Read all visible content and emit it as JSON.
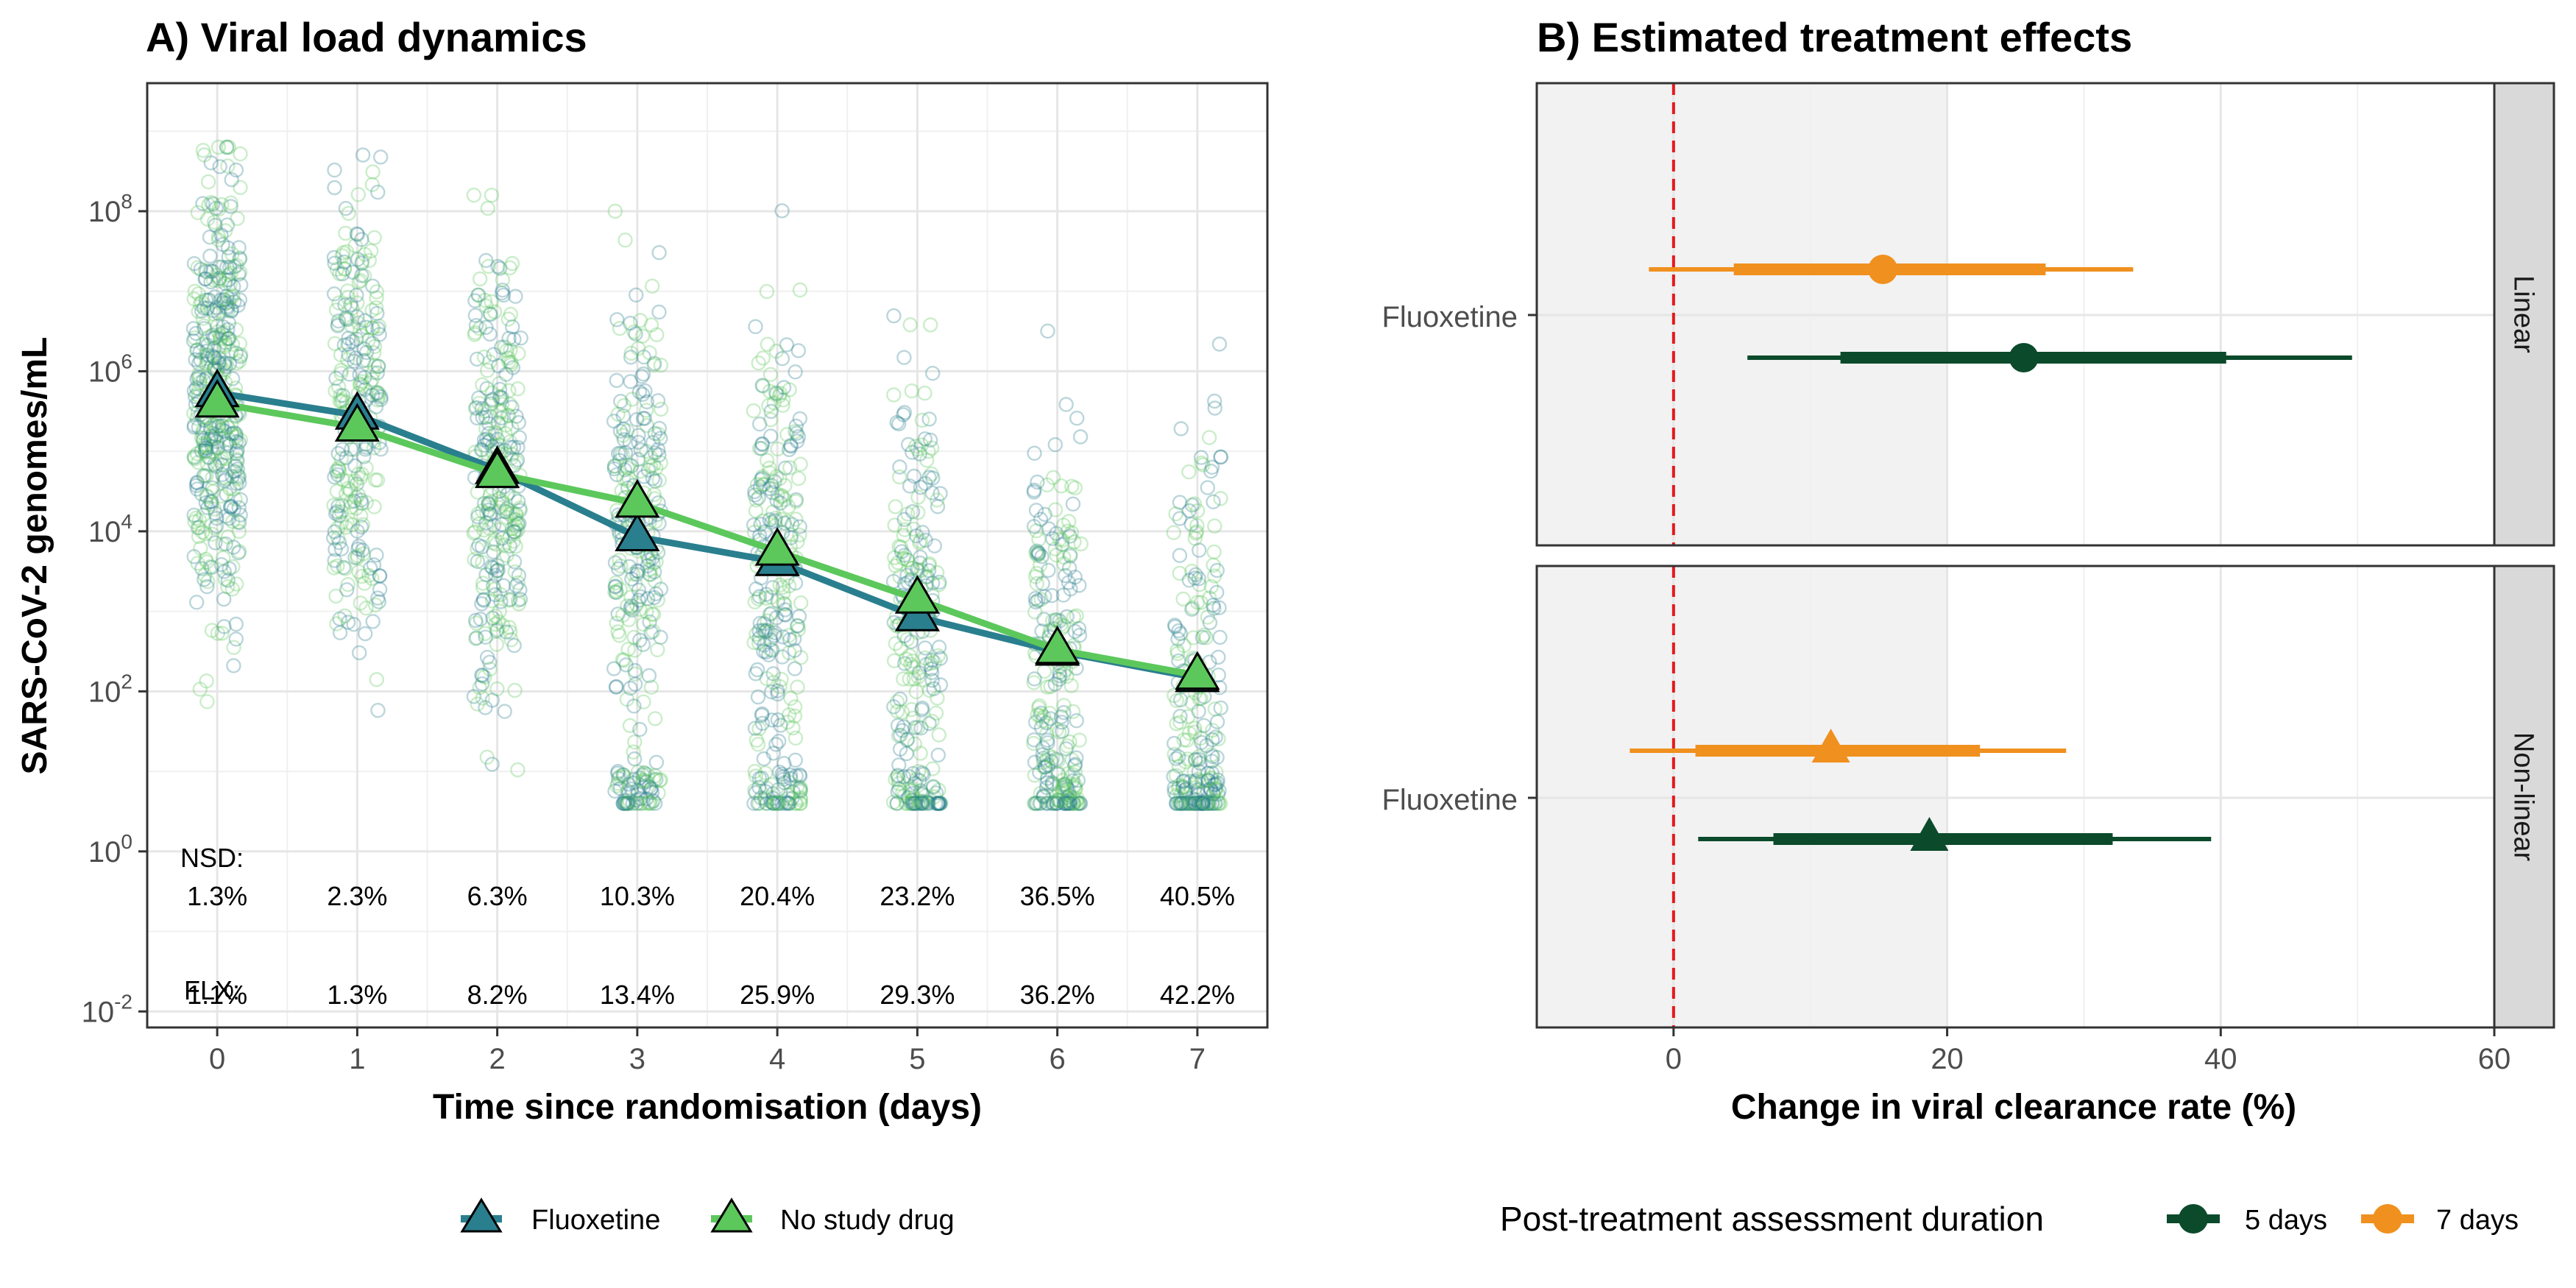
{
  "panelA": {
    "title": "A) Viral load dynamics",
    "xlabel": "Time since randomisation (days)",
    "ylabel": "SARS-CoV-2 genomes/mL",
    "nsd_label": "NSD:",
    "flx_label": "FLX:",
    "nsd_pct": [
      "1.3%",
      "2.3%",
      "6.3%",
      "10.3%",
      "20.4%",
      "23.2%",
      "36.5%",
      "40.5%"
    ],
    "flx_pct": [
      "1.1%",
      "1.3%",
      "8.2%",
      "13.4%",
      "25.9%",
      "29.3%",
      "36.2%",
      "42.2%"
    ],
    "legend": {
      "fluoxetine": "Fluoxetine",
      "nsd": "No study drug"
    },
    "colors": {
      "fluoxetine": "#2a7f8e",
      "nsd": "#5cc85c"
    }
  },
  "panelB": {
    "title": "B) Estimated treatment effects",
    "xlabel": "Change in viral clearance rate (%)",
    "row_label": "Fluoxetine",
    "strips": [
      "Linear",
      "Non-linear"
    ],
    "legend_title": "Post-treatment assessment duration",
    "legend": {
      "d5": "5 days",
      "d7": "7 days"
    },
    "colors": {
      "d5": "#0b4a2b",
      "d7": "#f0901e"
    }
  },
  "chart_data": [
    {
      "type": "line",
      "title": "A) Viral load dynamics",
      "xlabel": "Time since randomisation (days)",
      "ylabel": "SARS-CoV-2 genomes/mL",
      "x": [
        0,
        1,
        2,
        3,
        4,
        5,
        6,
        7
      ],
      "xlim": [
        -0.5,
        7.5
      ],
      "y_scale": "log10",
      "ylim_log10": [
        -2.2,
        9.6
      ],
      "y_ticks_log10": [
        -2,
        0,
        2,
        4,
        6,
        8
      ],
      "grid": true,
      "legend_position": "bottom",
      "series": [
        {
          "name": "Fluoxetine",
          "marker": "triangle",
          "log10_values": [
            5.73,
            5.45,
            4.77,
            3.93,
            3.62,
            2.93,
            2.5,
            2.17
          ]
        },
        {
          "name": "No study drug",
          "marker": "triangle",
          "log10_values": [
            5.6,
            5.3,
            4.72,
            4.35,
            3.75,
            3.15,
            2.52,
            2.2
          ]
        }
      ],
      "raw_points": "jittered individual log10 viral load measurements per day (not individually readable)",
      "annotations": {
        "NSD": [
          "1.3%",
          "2.3%",
          "6.3%",
          "10.3%",
          "20.4%",
          "23.2%",
          "36.5%",
          "40.5%"
        ],
        "FLX": [
          "1.1%",
          "1.3%",
          "8.2%",
          "13.4%",
          "25.9%",
          "29.3%",
          "36.2%",
          "42.2%"
        ]
      }
    },
    {
      "type": "scatter",
      "title": "B) Estimated treatment effects",
      "xlabel": "Change in viral clearance rate (%)",
      "xlim": [
        -10,
        60
      ],
      "x_ticks": [
        0,
        20,
        40,
        60
      ],
      "reference_line": 0,
      "facets": [
        "Linear",
        "Non-linear"
      ],
      "category": "Fluoxetine",
      "legend_title": "Post-treatment assessment duration",
      "legend_position": "bottom",
      "series": [
        {
          "name": "7 days",
          "facet": "Linear",
          "marker": "circle",
          "estimate": 15.3,
          "ci80": [
            4.4,
            27.2
          ],
          "ci95": [
            -1.8,
            33.6
          ]
        },
        {
          "name": "5 days",
          "facet": "Linear",
          "marker": "circle",
          "estimate": 25.6,
          "ci80": [
            12.2,
            40.4
          ],
          "ci95": [
            5.4,
            49.6
          ]
        },
        {
          "name": "7 days",
          "facet": "Non-linear",
          "marker": "triangle",
          "estimate": 11.5,
          "ci80": [
            1.6,
            22.4
          ],
          "ci95": [
            -3.2,
            28.7
          ]
        },
        {
          "name": "5 days",
          "facet": "Non-linear",
          "marker": "triangle",
          "estimate": 18.7,
          "ci80": [
            7.3,
            32.1
          ],
          "ci95": [
            1.8,
            39.3
          ]
        }
      ]
    }
  ]
}
